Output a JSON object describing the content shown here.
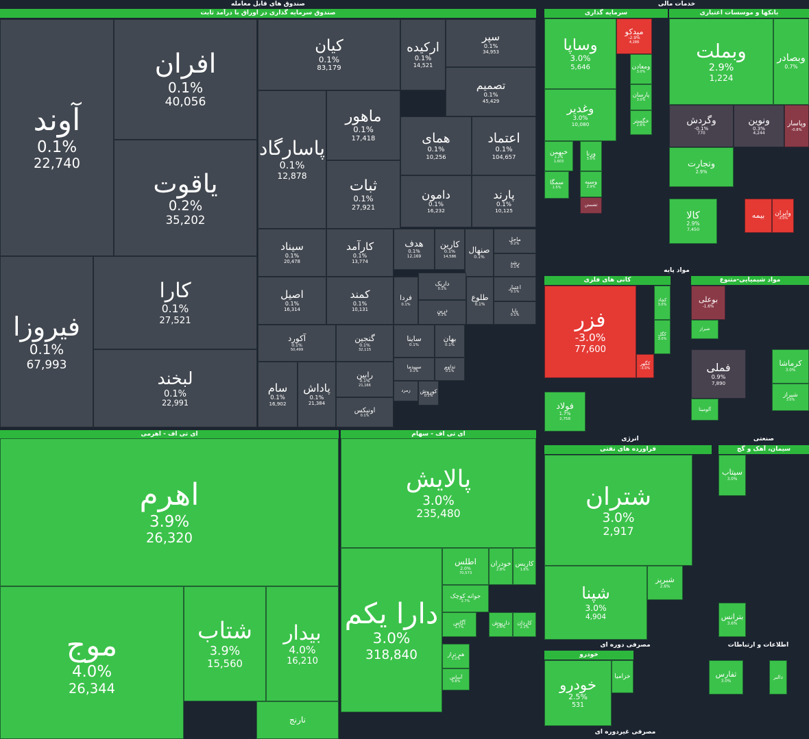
{
  "colors": {
    "fund": "#424851",
    "up": "#3bc24a",
    "down": "#e53934",
    "down_soft": "#8a3a47",
    "flat": "#48424f",
    "header_green": "#2db83d",
    "background": "#1c2430"
  },
  "headers": [
    {
      "text": "صندوق های قابل معامله"
    },
    {
      "text": "صندوق سرمایه گذاری در اوراق با درآمد ثابت"
    },
    {
      "text": "خدمات مالی"
    },
    {
      "text": "سرمایه گذاری"
    },
    {
      "text": "بانکها و موسسات اعتباری"
    },
    {
      "text": "مواد پایه"
    },
    {
      "text": "کانی های فلزی"
    },
    {
      "text": "مواد شیمیایی-متنوع"
    },
    {
      "text": "انرژی"
    },
    {
      "text": "فراورده های نفتی"
    },
    {
      "text": "صنعتی"
    },
    {
      "text": "سیمان، آهک و گچ"
    },
    {
      "text": "ای تی اف - اهرمی"
    },
    {
      "text": "ای تی اف - سهام"
    },
    {
      "text": "مصرفی دوره ای"
    },
    {
      "text": "خودرو"
    },
    {
      "text": "اطلاعات و ارتباطات"
    },
    {
      "text": "مصرفی غیردوره ای"
    }
  ],
  "chart_data": {
    "type": "treemap",
    "tiles": [
      {
        "name": "آوند",
        "change": "0.1%",
        "value": "22,740",
        "color": "fund"
      },
      {
        "name": "افران",
        "change": "0.1%",
        "value": "40,056",
        "color": "fund"
      },
      {
        "name": "یاقوت",
        "change": "0.2%",
        "value": "35,202",
        "color": "fund"
      },
      {
        "name": "فیروزا",
        "change": "0.1%",
        "value": "67,993",
        "color": "fund"
      },
      {
        "name": "کارا",
        "change": "0.1%",
        "value": "27,521",
        "color": "fund"
      },
      {
        "name": "لبخند",
        "change": "0.1%",
        "value": "22,991",
        "color": "fund"
      },
      {
        "name": "کیان",
        "change": "0.1%",
        "value": "83,179",
        "color": "fund"
      },
      {
        "name": "اركیده",
        "change": "0.1%",
        "value": "14,521",
        "color": "fund"
      },
      {
        "name": "سپر",
        "change": "0.1%",
        "value": "34,953",
        "color": "fund"
      },
      {
        "name": "تصمیم",
        "change": "0.1%",
        "value": "45,429",
        "color": "fund"
      },
      {
        "name": "پاسارگاد",
        "change": "0.1%",
        "value": "12,878",
        "color": "fund"
      },
      {
        "name": "ماهور",
        "change": "0.1%",
        "value": "17,418",
        "color": "fund"
      },
      {
        "name": "همای",
        "change": "0.1%",
        "value": "10,256",
        "color": "fund"
      },
      {
        "name": "اعتماد",
        "change": "0.1%",
        "value": "104,657",
        "color": "fund"
      },
      {
        "name": "ثبات",
        "change": "0.1%",
        "value": "27,921",
        "color": "fund"
      },
      {
        "name": "دامون",
        "change": "0.1%",
        "value": "16,232",
        "color": "fund"
      },
      {
        "name": "پارند",
        "change": "0.1%",
        "value": "10,125",
        "color": "fund"
      },
      {
        "name": "سیناد",
        "change": "0.1%",
        "value": "20,478",
        "color": "fund"
      },
      {
        "name": "كارآمد",
        "change": "0.1%",
        "value": "13,774",
        "color": "fund"
      },
      {
        "name": "هدف",
        "change": "0.1%",
        "value": "12,169",
        "color": "fund"
      },
      {
        "name": "کارین",
        "change": "0.1%",
        "value": "14,586",
        "color": "fund"
      },
      {
        "name": "صنهال",
        "change": "0.1%",
        "value": "",
        "color": "fund"
      },
      {
        "name": "ماحل",
        "change": "0.2%",
        "value": "",
        "color": "fund"
      },
      {
        "name": "رشد",
        "change": "0.1%",
        "value": "",
        "color": "fund"
      },
      {
        "name": "اصیل",
        "change": "0.1%",
        "value": "16,314",
        "color": "fund"
      },
      {
        "name": "كمند",
        "change": "0.1%",
        "value": "10,131",
        "color": "fund"
      },
      {
        "name": "فردا",
        "change": "0.1%",
        "value": "",
        "color": "fund"
      },
      {
        "name": "داریک",
        "change": "0.1%",
        "value": "",
        "color": "fund"
      },
      {
        "name": "درین",
        "change": "0.1%",
        "value": "",
        "color": "fund"
      },
      {
        "name": "طلوع",
        "change": "0.1%",
        "value": "",
        "color": "fund"
      },
      {
        "name": "اعتبار",
        "change": "0.1%",
        "value": "",
        "color": "fund"
      },
      {
        "name": "پایا",
        "change": "0.1%",
        "value": "",
        "color": "fund"
      },
      {
        "name": "آکورد",
        "change": "0.1%",
        "value": "50,499",
        "color": "fund"
      },
      {
        "name": "گنجین",
        "change": "0.1%",
        "value": "32,115",
        "color": "fund"
      },
      {
        "name": "سام",
        "change": "0.1%",
        "value": "16,902",
        "color": "fund"
      },
      {
        "name": "پاداش",
        "change": "0.1%",
        "value": "21,384",
        "color": "fund"
      },
      {
        "name": "رابین",
        "change": "0.1%",
        "value": "21,166",
        "color": "fund"
      },
      {
        "name": "اونیکس",
        "change": "0.1%",
        "value": "",
        "color": "fund"
      },
      {
        "name": "ساینا",
        "change": "0.1%",
        "value": "",
        "color": "fund"
      },
      {
        "name": "بهان",
        "change": "0.1%",
        "value": "",
        "color": "fund"
      },
      {
        "name": "سپیدما",
        "change": "0.1%",
        "value": "",
        "color": "fund"
      },
      {
        "name": "تداوم",
        "change": "0.1%",
        "value": "",
        "color": "fund"
      },
      {
        "name": "زمرد",
        "change": "",
        "value": "",
        "color": "fund"
      },
      {
        "name": "کوروش",
        "change": "0.1%",
        "value": "",
        "color": "fund"
      },
      {
        "name": "اهرم",
        "change": "3.9%",
        "value": "26,320",
        "color": "up"
      },
      {
        "name": "موج",
        "change": "4.0%",
        "value": "26,344",
        "color": "up"
      },
      {
        "name": "شتاب",
        "change": "3.9%",
        "value": "15,560",
        "color": "up"
      },
      {
        "name": "بیدار",
        "change": "4.0%",
        "value": "16,210",
        "color": "up"
      },
      {
        "name": "نارنج",
        "change": "",
        "value": "",
        "color": "up"
      },
      {
        "name": "پالایش",
        "change": "3.0%",
        "value": "235,480",
        "color": "up"
      },
      {
        "name": "دارا یکم",
        "change": "3.0%",
        "value": "318,840",
        "color": "up"
      },
      {
        "name": "اطلس",
        "change": "2.0%",
        "value": "70,573",
        "color": "up"
      },
      {
        "name": "خودران",
        "change": "2.8%",
        "value": "",
        "color": "up"
      },
      {
        "name": "کاریس",
        "change": "1.6%",
        "value": "",
        "color": "up"
      },
      {
        "name": "جوانه کوچک",
        "change": "2.7%",
        "value": "",
        "color": "up"
      },
      {
        "name": "آگاس",
        "change": "1.7%",
        "value": "",
        "color": "up"
      },
      {
        "name": "داریوش",
        "change": "2.4%",
        "value": "",
        "color": "up"
      },
      {
        "name": "کاردان",
        "change": "2.1%",
        "value": "",
        "color": "up"
      },
      {
        "name": "هم تراز",
        "change": "1.2%",
        "value": "",
        "color": "up"
      },
      {
        "name": "آساس",
        "change": "0.8%",
        "value": "",
        "color": "up"
      },
      {
        "name": "وساپا",
        "change": "3.0%",
        "value": "5,646",
        "color": "up"
      },
      {
        "name": "میدکو",
        "change": "-2.9%",
        "value": "4,288",
        "color": "down"
      },
      {
        "name": "ومعادن",
        "change": "3.0%",
        "value": "",
        "color": "up"
      },
      {
        "name": "وغدیر",
        "change": "3.0%",
        "value": "10,080",
        "color": "up"
      },
      {
        "name": "پارسان",
        "change": "3.0%",
        "value": "",
        "color": "up"
      },
      {
        "name": "خگستر",
        "change": "2.6%",
        "value": "",
        "color": "up"
      },
      {
        "name": "خبهمن",
        "change": "2.2%",
        "value": "1,603",
        "color": "up"
      },
      {
        "name": "ورنا",
        "change": "3.0%",
        "value": "",
        "color": "up"
      },
      {
        "name": "وسپه",
        "change": "2.9%",
        "value": "",
        "color": "up"
      },
      {
        "name": "سمگا",
        "change": "1.5%",
        "value": "",
        "color": "up"
      },
      {
        "name": "ثشستن",
        "change": "",
        "value": "",
        "color": "down_soft"
      },
      {
        "name": "وبملت",
        "change": "2.9%",
        "value": "1,224",
        "color": "up"
      },
      {
        "name": "وبصادر",
        "change": "0.7%",
        "value": "",
        "color": "up"
      },
      {
        "name": "وگردش",
        "change": "-0.1%",
        "value": "770",
        "color": "flat"
      },
      {
        "name": "ونوین",
        "change": "0.3%",
        "value": "4,244",
        "color": "flat"
      },
      {
        "name": "وپاسار",
        "change": "-0.8%",
        "value": "",
        "color": "down_soft"
      },
      {
        "name": "وتجارت",
        "change": "2.9%",
        "value": "",
        "color": "up"
      },
      {
        "name": "کالا",
        "change": "2.9%",
        "value": "7,450",
        "color": "up"
      },
      {
        "name": "وایران",
        "change": "-3.0%",
        "value": "",
        "color": "down"
      },
      {
        "name": "بیمه",
        "change": "",
        "value": "",
        "color": "down"
      },
      {
        "name": "فزر",
        "change": "-3.0%",
        "value": "77,600",
        "color": "down"
      },
      {
        "name": "کچاد",
        "change": "3.0%",
        "value": "",
        "color": "up"
      },
      {
        "name": "کگل",
        "change": "3.0%",
        "value": "",
        "color": "up"
      },
      {
        "name": "کگهر",
        "change": "-3.0%",
        "value": "",
        "color": "down"
      },
      {
        "name": "بوعلی",
        "change": "-1.6%",
        "value": "",
        "color": "down_soft"
      },
      {
        "name": "شیراز",
        "change": "",
        "value": "",
        "color": "up"
      },
      {
        "name": "فملی",
        "change": "0.9%",
        "value": "7,890",
        "color": "flat"
      },
      {
        "name": "کرماشا",
        "change": "3.0%",
        "value": "",
        "color": "up"
      },
      {
        "name": "شیراز",
        "change": "3.0%",
        "value": "",
        "color": "up"
      },
      {
        "name": "فولاد",
        "change": "1.7%",
        "value": "2,758",
        "color": "up"
      },
      {
        "name": "آلومینا",
        "change": "",
        "value": "",
        "color": "up"
      },
      {
        "name": "شتران",
        "change": "3.0%",
        "value": "2,917",
        "color": "up"
      },
      {
        "name": "شپنا",
        "change": "3.0%",
        "value": "4,904",
        "color": "up"
      },
      {
        "name": "شبریز",
        "change": "2.6%",
        "value": "",
        "color": "up"
      },
      {
        "name": "سیتاب",
        "change": "3.0%",
        "value": "",
        "color": "up"
      },
      {
        "name": "بترانس",
        "change": "3.6%",
        "value": "",
        "color": "up"
      },
      {
        "name": "خودرو",
        "change": "2.5%",
        "value": "531",
        "color": "up"
      },
      {
        "name": "خزامیا",
        "change": "",
        "value": "",
        "color": "up"
      },
      {
        "name": "ثفارس",
        "change": "3.0%",
        "value": "",
        "color": "up"
      },
      {
        "name": "دالبر",
        "change": "",
        "value": "",
        "color": "up"
      }
    ]
  }
}
